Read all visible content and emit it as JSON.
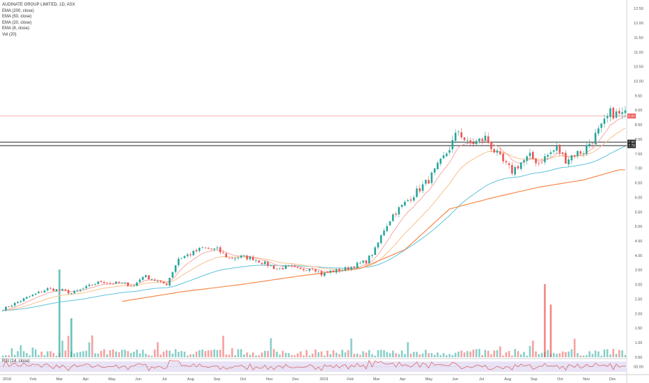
{
  "legend": {
    "title": "AUDINATE GROUP LIMITED, 1D, ASX",
    "lines": [
      "EMA (200, close)",
      "EMA (50, close)",
      "EMA (20, close)",
      "EMA (8, close)",
      "Vol (20)"
    ]
  },
  "rsi": {
    "label": "RSI (14, close)",
    "level_label": "50.00"
  },
  "colors": {
    "up": "#26a69a",
    "down": "#ef5350",
    "ema200": "#f5894a",
    "ema50": "#5ec3d9",
    "ema20": "#f9c08a",
    "ema8": "#f6a09a",
    "rsi_line": "#d86b6b",
    "rsi_band": "#e9e3f6",
    "hline_red": "#f4a7a7",
    "hline_dark": "#222222",
    "current_price_bg": "#ef5350"
  },
  "chart_data": {
    "type": "candlestick",
    "title": "AUDINATE GROUP LIMITED, 1D, ASX",
    "y_axis": {
      "ticks": [
        "12.50",
        "12.00",
        "11.50",
        "11.00",
        "10.50",
        "10.00",
        "9.50",
        "9.00",
        "8.50",
        "8.00",
        "7.50",
        "7.00",
        "6.50",
        "6.00",
        "5.50",
        "5.00",
        "4.50",
        "4.00",
        "3.50",
        "3.00",
        "2.50",
        "2.00",
        "1.50",
        "1.00",
        "0.50"
      ],
      "range": [
        0.45,
        12.6
      ]
    },
    "x_axis": {
      "ticks": [
        "2018",
        "Feb",
        "Mar",
        "Apr",
        "May",
        "Jun",
        "Jul",
        "Aug",
        "Sep",
        "Oct",
        "Nov",
        "Dec",
        "2019",
        "Feb",
        "Mar",
        "Apr",
        "May",
        "Jun",
        "Jul",
        "Aug",
        "Sep",
        "Oct",
        "Nov",
        "Dec"
      ]
    },
    "horizontal_lines": [
      {
        "value": 8.8,
        "label": "8.80",
        "style": "red"
      },
      {
        "value": 7.9,
        "label": "7.90",
        "style": "dark"
      },
      {
        "value": 7.78,
        "label": "7.78",
        "style": "dark"
      }
    ],
    "price_path": [
      [
        0,
        2.15
      ],
      [
        8,
        2.55
      ],
      [
        15,
        2.85
      ],
      [
        20,
        2.8
      ],
      [
        23,
        2.7
      ],
      [
        27,
        2.85
      ],
      [
        30,
        3.0
      ],
      [
        33,
        3.1
      ],
      [
        36,
        3.05
      ],
      [
        39,
        3.05
      ],
      [
        42,
        3.0
      ],
      [
        44,
        2.95
      ],
      [
        47,
        3.3
      ],
      [
        50,
        3.2
      ],
      [
        53,
        3.05
      ],
      [
        55,
        3.02
      ],
      [
        59,
        3.9
      ],
      [
        63,
        4.05
      ],
      [
        67,
        4.25
      ],
      [
        72,
        4.2
      ],
      [
        76,
        3.9
      ],
      [
        80,
        3.95
      ],
      [
        84,
        3.9
      ],
      [
        88,
        3.72
      ],
      [
        92,
        3.55
      ],
      [
        96,
        3.6
      ],
      [
        100,
        3.5
      ],
      [
        104,
        3.6
      ],
      [
        107,
        3.35
      ],
      [
        110,
        3.45
      ],
      [
        114,
        3.5
      ],
      [
        118,
        3.65
      ],
      [
        122,
        3.8
      ],
      [
        125,
        4.2
      ],
      [
        128,
        4.9
      ],
      [
        131,
        5.4
      ],
      [
        134,
        5.7
      ],
      [
        137,
        6.0
      ],
      [
        140,
        6.3
      ],
      [
        143,
        6.6
      ],
      [
        147,
        7.2
      ],
      [
        150,
        7.7
      ],
      [
        153,
        8.3
      ],
      [
        156,
        7.85
      ],
      [
        159,
        7.9
      ],
      [
        162,
        8.05
      ],
      [
        165,
        7.6
      ],
      [
        168,
        7.2
      ],
      [
        171,
        6.9
      ],
      [
        174,
        7.2
      ],
      [
        177,
        7.4
      ],
      [
        180,
        7.2
      ],
      [
        183,
        7.45
      ],
      [
        186,
        7.7
      ],
      [
        189,
        7.3
      ],
      [
        192,
        7.5
      ],
      [
        195,
        7.6
      ],
      [
        198,
        8.0
      ],
      [
        201,
        8.4
      ],
      [
        204,
        8.9
      ],
      [
        207,
        8.85
      ]
    ],
    "ema200_start_index": 40,
    "ema200_path": [
      [
        40,
        2.42
      ],
      [
        60,
        2.75
      ],
      [
        80,
        3.0
      ],
      [
        100,
        3.3
      ],
      [
        120,
        3.55
      ],
      [
        135,
        4.2
      ],
      [
        150,
        5.6
      ],
      [
        165,
        6.0
      ],
      [
        180,
        6.35
      ],
      [
        195,
        6.6
      ],
      [
        207,
        6.95
      ]
    ],
    "volume_scale_note": "Vol (20)",
    "volume_spikes": [
      {
        "index": 19,
        "value": 9.0,
        "color": "up"
      },
      {
        "index": 23,
        "value": 4.0,
        "color": "up"
      },
      {
        "index": 182,
        "value": 7.5,
        "color": "down"
      },
      {
        "index": 184,
        "value": 5.4,
        "color": "down"
      }
    ]
  }
}
